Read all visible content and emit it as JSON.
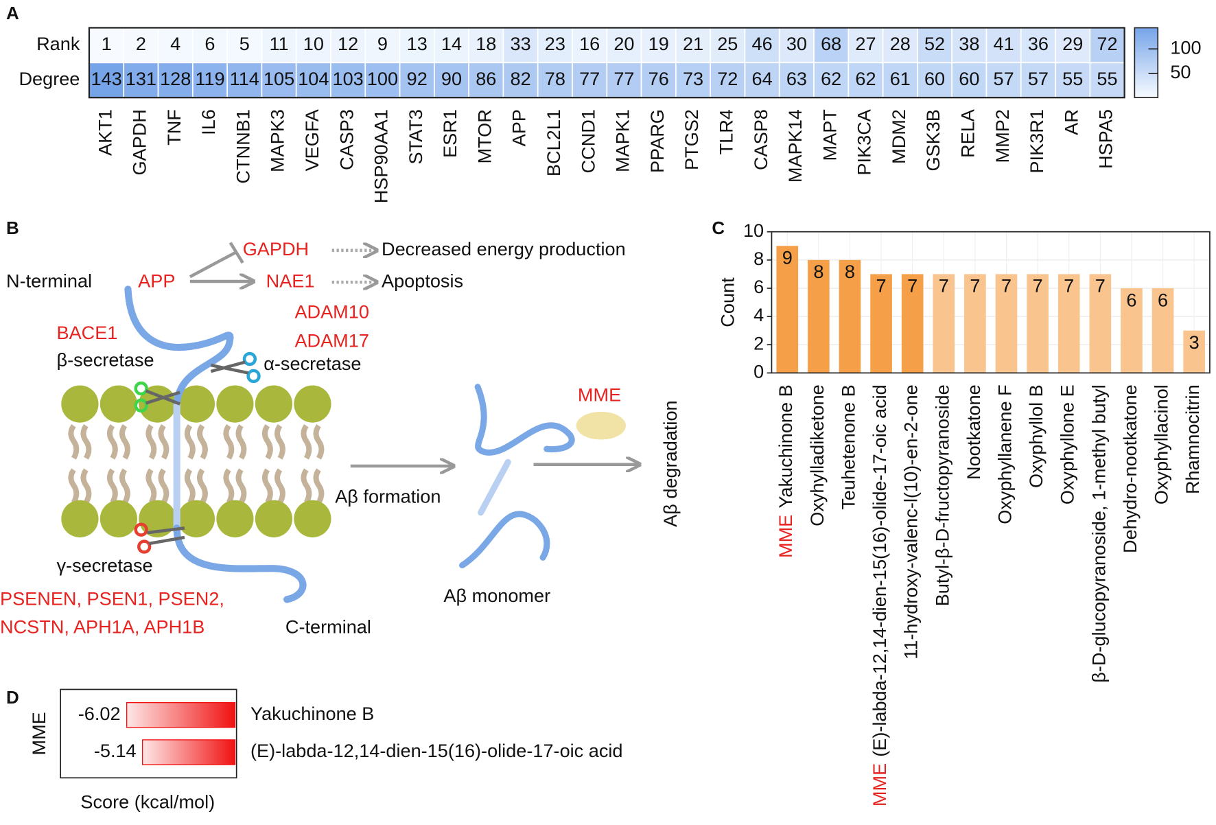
{
  "panel_labels": [
    "A",
    "B",
    "C",
    "D"
  ],
  "chart_data": [
    {
      "type": "heatmap",
      "rows": [
        "Rank",
        "Degree"
      ],
      "categories": [
        "AKT1",
        "GAPDH",
        "TNF",
        "IL6",
        "CTNNB1",
        "MAPK3",
        "VEGFA",
        "CASP3",
        "HSP90AA1",
        "STAT3",
        "ESR1",
        "MTOR",
        "APP",
        "BCL2L1",
        "CCND1",
        "MAPK1",
        "PPARG",
        "PTGS2",
        "TLR4",
        "CASP8",
        "MAPK14",
        "MAPT",
        "PIK3CA",
        "MDM2",
        "GSK3B",
        "RELA",
        "MMP2",
        "PIK3R1",
        "AR",
        "HSPA5"
      ],
      "values": [
        [
          1,
          2,
          4,
          6,
          5,
          11,
          10,
          12,
          9,
          13,
          14,
          18,
          33,
          23,
          16,
          20,
          19,
          21,
          25,
          46,
          30,
          68,
          27,
          28,
          52,
          38,
          41,
          36,
          29,
          72
        ],
        [
          143,
          131,
          128,
          119,
          114,
          105,
          104,
          103,
          100,
          92,
          90,
          86,
          82,
          78,
          77,
          77,
          76,
          73,
          72,
          64,
          63,
          62,
          62,
          61,
          60,
          60,
          57,
          57,
          55,
          55
        ]
      ],
      "colormap": [
        "#f7fbff",
        "#76a4e9"
      ],
      "clim": [
        1,
        143
      ],
      "cticks": [
        50,
        100
      ]
    },
    {
      "type": "bar",
      "ylabel": "Count",
      "categories": [
        "Yakuchinone B",
        "Oxyhylladiketone",
        "Teuhetenone B",
        "(E)-labda-12,14-dien-15(16)-olide-17-oic acid",
        "11-hydroxy-valenc-l(10)-en-2-one",
        "Butyl-β-D-fructopyranoside",
        "Nootkatone",
        "Oxyphyllanene F",
        "Oxyphyllol B",
        "Oxyphyllone E",
        "β-D-glucopyranoside, 1-methyl butyl",
        "Dehydro-nootkatone",
        "Oxyphyllacinol",
        "Rhamnocitrin"
      ],
      "values": [
        9,
        8,
        8,
        7,
        7,
        7,
        7,
        7,
        7,
        7,
        7,
        6,
        6,
        3
      ],
      "colors": [
        "#f5a048",
        "#f5a048",
        "#f5a048",
        "#f5a048",
        "#f5a048",
        "#f9c48e",
        "#f9c48e",
        "#f9c48e",
        "#f9c48e",
        "#f9c48e",
        "#f9c48e",
        "#f9c48e",
        "#f9c48e",
        "#f9c48e"
      ],
      "ylim": [
        0,
        10
      ],
      "yticks": [
        0,
        2,
        4,
        6,
        8,
        10
      ],
      "grid": true,
      "highlight": {
        "text": "MME",
        "color": "#e8231f",
        "categories": [
          0,
          3
        ]
      }
    },
    {
      "type": "hbar",
      "ylabel": "MME",
      "xlabel": "Score (kcal/mol)",
      "categories": [
        "Yakuchinone B",
        "(E)-labda-12,14-dien-15(16)-olide-17-oic acid"
      ],
      "values": [
        -6.02,
        -5.14
      ],
      "color": "#f01212",
      "xlim": [
        -9.7,
        0
      ]
    }
  ],
  "diagram": {
    "n_terminal": "N-terminal",
    "app": "APP",
    "gapdh": "GAPDH",
    "nae1": "NAE1",
    "energy": "Decreased energy production",
    "apoptosis": "Apoptosis",
    "adam10": "ADAM10",
    "adam17": "ADAM17",
    "bace1": "BACE1",
    "beta_secretase": "β-secretase",
    "alpha_secretase": "α-secretase",
    "gamma_secretase": "γ-secretase",
    "psen_line1": "PSENEN, PSEN1, PSEN2,",
    "psen_line2": "NCSTN, APH1A, APH1B",
    "c_terminal": "C-terminal",
    "formation": "Aβ formation",
    "monomer": "Aβ monomer",
    "mme": "MME",
    "degradation": "Aβ degradation"
  }
}
